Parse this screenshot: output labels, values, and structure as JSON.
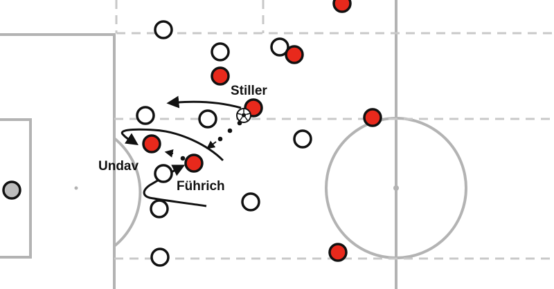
{
  "colors": {
    "pitch_line": "#b3b3b3",
    "dashed_line": "#c8c8c8",
    "team_red": "#e8291c",
    "team_white": "#ffffff",
    "player_outline": "#111111",
    "goalkeeper": "#bdbdbd",
    "arrow": "#111111"
  },
  "labels": {
    "stiller": "Stiller",
    "undav": "Undav",
    "fuhrich": "Führich"
  },
  "icons": {
    "ball": "soccer-ball-icon",
    "arrowhead": "arrowhead-icon"
  }
}
